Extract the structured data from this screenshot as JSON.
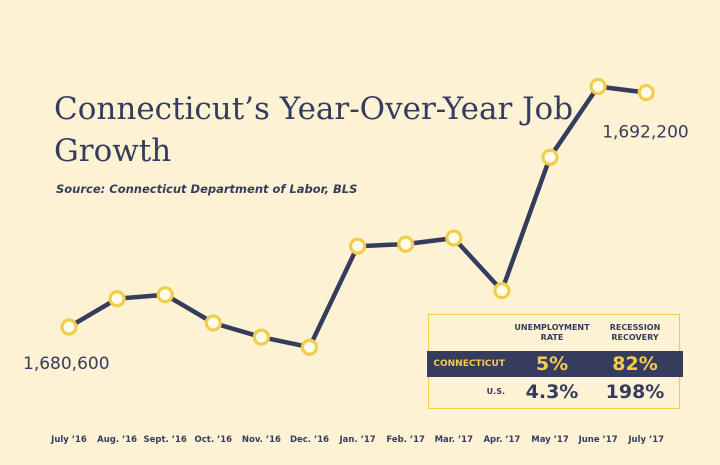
{
  "title": "Connecticut’s Year-Over-Year Job Growth",
  "source": "Source: Connecticut Department of Labor, BLS",
  "colors": {
    "background": "#fdf3d4",
    "line": "#363c5e",
    "marker": "#f2cd4b",
    "text": "#363c5e"
  },
  "chart_data": {
    "type": "line",
    "title": "Connecticut’s Year-Over-Year Job Growth",
    "xlabel": "",
    "ylabel": "",
    "categories": [
      "July ’16",
      "Aug. ’16",
      "Sept. ’16",
      "Oct. ’16",
      "Nov. ’16",
      "Dec. ’16",
      "Jan. ’17",
      "Feb. ’17",
      "Mar. ’17",
      "Apr. ’17",
      "May ’17",
      "June ’17",
      "July ’17"
    ],
    "values": [
      1680600,
      1682000,
      1682200,
      1680800,
      1680100,
      1679600,
      1684600,
      1684700,
      1685000,
      1682400,
      1689000,
      1692500,
      1692200
    ],
    "ylim": [
      1676000,
      1694800
    ],
    "grid": false,
    "annotations": [
      {
        "index": 0,
        "text": "1,680,600"
      },
      {
        "index": 12,
        "text": "1,692,200"
      }
    ]
  },
  "stats_table": {
    "headers": [
      "UNEMPLOYMENT RATE",
      "RECESSION RECOVERY"
    ],
    "rows": [
      {
        "label": "CONNECTICUT",
        "values": [
          "5%",
          "82%"
        ]
      },
      {
        "label": "U.S.",
        "values": [
          "4.3%",
          "198%"
        ]
      }
    ]
  }
}
